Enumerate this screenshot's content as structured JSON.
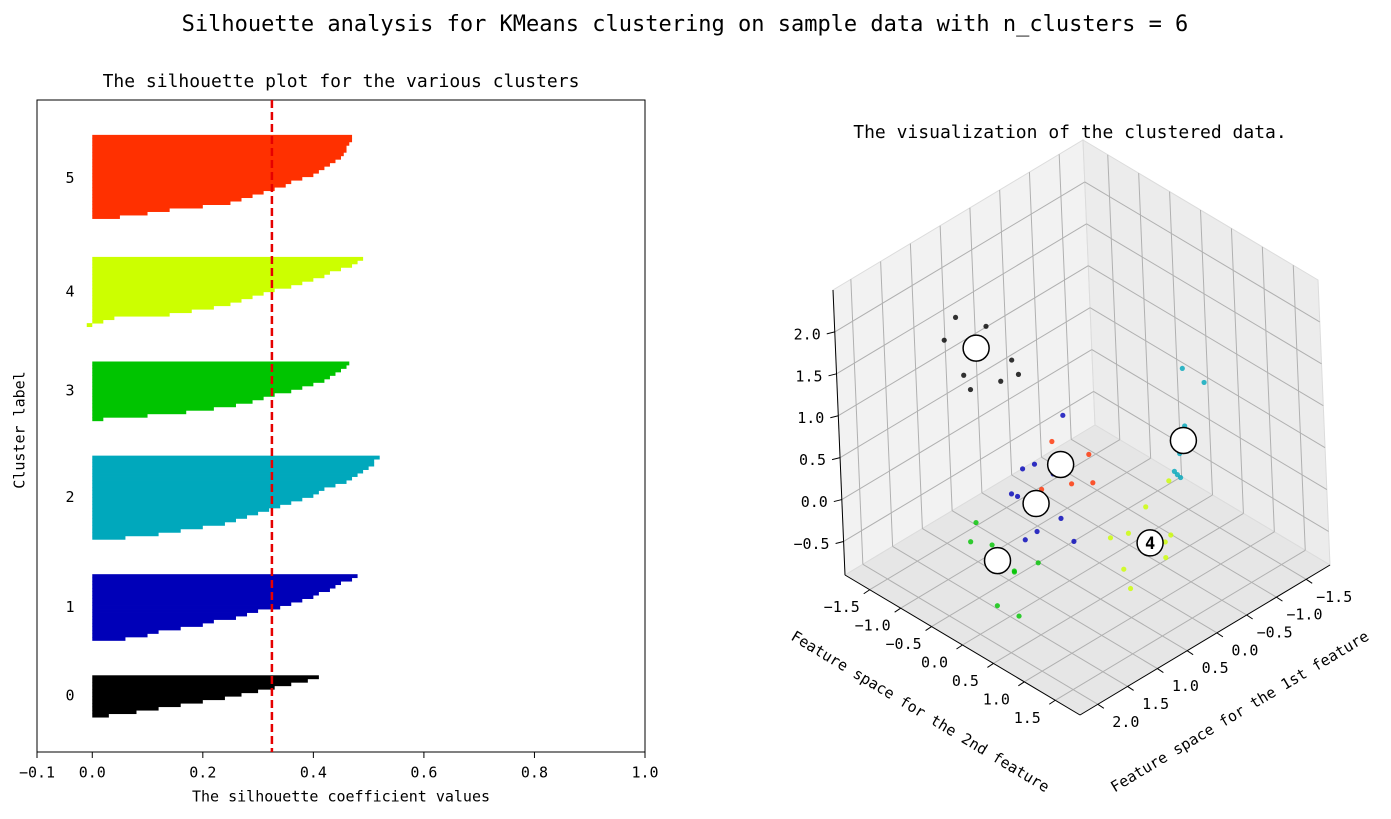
{
  "title": "Silhouette analysis for KMeans clustering on sample data with n_clusters = 6",
  "chart_data": [
    {
      "type": "silhouette",
      "title": "The silhouette plot for the various clusters",
      "xlabel": "The silhouette coefficient values",
      "ylabel": "Cluster label",
      "xlim": [
        -0.1,
        1.0
      ],
      "xticks": [
        {
          "value": -0.1,
          "label": "−0.1"
        },
        {
          "value": 0,
          "label": "0.0"
        },
        0.2,
        0.4,
        0.6,
        0.8,
        {
          "value": 1,
          "label": "1.0"
        }
      ],
      "average_line": 0.325,
      "average_line_color": "#e60000",
      "series": [
        {
          "name": "0",
          "color": "#000000",
          "values": [
            0.03,
            0.08,
            0.12,
            0.16,
            0.2,
            0.24,
            0.27,
            0.3,
            0.33,
            0.36,
            0.39,
            0.41
          ]
        },
        {
          "name": "1",
          "color": "#0000b8",
          "values": [
            0.06,
            0.1,
            0.12,
            0.16,
            0.2,
            0.22,
            0.26,
            0.28,
            0.3,
            0.34,
            0.36,
            0.38,
            0.4,
            0.41,
            0.43,
            0.44,
            0.45,
            0.47,
            0.48
          ]
        },
        {
          "name": "2",
          "color": "#00a8bc",
          "values": [
            0.06,
            0.12,
            0.16,
            0.2,
            0.24,
            0.26,
            0.28,
            0.3,
            0.32,
            0.34,
            0.36,
            0.38,
            0.4,
            0.41,
            0.42,
            0.44,
            0.46,
            0.47,
            0.48,
            0.49,
            0.5,
            0.51,
            0.51,
            0.52
          ]
        },
        {
          "name": "3",
          "color": "#00c400",
          "values": [
            0.02,
            0.1,
            0.17,
            0.22,
            0.26,
            0.29,
            0.31,
            0.33,
            0.36,
            0.38,
            0.4,
            0.42,
            0.43,
            0.44,
            0.45,
            0.46,
            0.465
          ]
        },
        {
          "name": "4",
          "color": "#ccff00",
          "values": [
            -0.01,
            0.02,
            0.04,
            0.14,
            0.18,
            0.22,
            0.25,
            0.27,
            0.29,
            0.31,
            0.33,
            0.36,
            0.38,
            0.4,
            0.42,
            0.43,
            0.45,
            0.47,
            0.48,
            0.49
          ]
        },
        {
          "name": "5",
          "color": "#ff3000",
          "values": [
            0.0,
            0.05,
            0.1,
            0.14,
            0.2,
            0.25,
            0.27,
            0.29,
            0.31,
            0.33,
            0.35,
            0.36,
            0.38,
            0.4,
            0.41,
            0.42,
            0.43,
            0.44,
            0.45,
            0.455,
            0.46,
            0.46,
            0.465,
            0.47,
            0.47
          ]
        }
      ]
    },
    {
      "type": "scatter3d",
      "title": "The visualization of the clustered data.",
      "xlabel": "Feature space for the 1st feature",
      "ylabel": "Feature space for the 2nd feature",
      "xlim": [
        -1.9,
        2.3
      ],
      "ylim": [
        -1.9,
        1.9
      ],
      "zlim": [
        -0.9,
        2.5
      ],
      "xticks": [
        {
          "value": -1.5,
          "label": "−1.5"
        },
        {
          "value": -1,
          "label": "−1.0"
        },
        {
          "value": -0.5,
          "label": "−0.5"
        },
        {
          "value": 0,
          "label": "0.0"
        },
        0.5,
        {
          "value": 1,
          "label": "1.0"
        },
        1.5,
        {
          "value": 2,
          "label": "2.0"
        }
      ],
      "yticks": [
        {
          "value": -1.5,
          "label": "−1.5"
        },
        {
          "value": -1,
          "label": "−1.0"
        },
        {
          "value": -0.5,
          "label": "−0.5"
        },
        {
          "value": 0,
          "label": "0.0"
        },
        0.5,
        {
          "value": 1,
          "label": "1.0"
        },
        1.5
      ],
      "zticks": [
        {
          "value": -0.5,
          "label": "−0.5"
        },
        {
          "value": 0,
          "label": "0.0"
        },
        0.5,
        {
          "value": 1,
          "label": "1.0"
        },
        1.5,
        {
          "value": 2,
          "label": "2.0"
        }
      ],
      "series": [
        {
          "color": "#000000",
          "x": [
            1.5,
            1.3,
            1.0,
            1.6,
            1.2,
            0.9,
            1.4,
            1.1,
            0.8
          ],
          "y": [
            -0.9,
            -0.4,
            -0.8,
            -0.5,
            -1.0,
            -0.3,
            -0.6,
            -0.2,
            -0.7
          ],
          "z": [
            2.0,
            2.3,
            1.7,
            1.8,
            2.1,
            1.6,
            1.5,
            1.9,
            1.3
          ]
        },
        {
          "color": "#0000b8",
          "x": [
            0.9,
            0.5,
            0.7,
            1.0,
            0.4,
            0.6,
            0.8,
            0.3,
            1.1,
            0.65
          ],
          "y": [
            -0.4,
            -0.1,
            -0.5,
            0.0,
            -0.3,
            0.2,
            -0.6,
            -0.2,
            -0.1,
            -0.35
          ],
          "z": [
            0.1,
            -0.2,
            0.3,
            -0.1,
            0.2,
            -0.3,
            0.0,
            0.9,
            -0.2,
            0.4
          ]
        },
        {
          "color": "#00a8bc",
          "x": [
            -0.8,
            -0.6,
            -0.9,
            -0.5,
            -0.7,
            -1.0,
            -0.65,
            -0.75,
            -0.4
          ],
          "y": [
            0.7,
            0.8,
            0.6,
            0.9,
            0.75,
            0.85,
            0.65,
            0.7,
            0.95
          ],
          "z": [
            0.7,
            0.5,
            1.3,
            0.3,
            0.6,
            1.2,
            0.2,
            0.65,
            0.4
          ]
        },
        {
          "color": "#00c400",
          "x": [
            1.6,
            1.4,
            1.7,
            1.3,
            1.8,
            1.5,
            1.2,
            1.65,
            1.45
          ],
          "y": [
            -0.2,
            0.0,
            -0.4,
            -0.1,
            0.1,
            -0.5,
            0.2,
            0.3,
            -0.3
          ],
          "z": [
            -0.2,
            -0.4,
            -0.1,
            -0.5,
            -0.6,
            0.0,
            -0.3,
            -0.7,
            -0.2
          ]
        },
        {
          "color": "#ccff00",
          "x": [
            -0.5,
            -0.2,
            -0.4,
            0.0,
            -0.6,
            -0.3,
            0.1,
            -0.1,
            -0.7
          ],
          "y": [
            0.6,
            0.3,
            0.7,
            0.4,
            0.2,
            0.9,
            0.6,
            0.1,
            0.5
          ],
          "z": [
            -0.6,
            -0.5,
            -0.7,
            -0.8,
            -0.4,
            -0.3,
            -0.9,
            -0.6,
            0.0
          ]
        },
        {
          "color": "#ff3000",
          "x": [
            0.2,
            0.4,
            0.1,
            0.5,
            0.3,
            0.0,
            0.6,
            0.25
          ],
          "y": [
            -0.3,
            -0.2,
            -0.5,
            0.1,
            -0.4,
            -0.1,
            -0.3,
            0.2
          ],
          "z": [
            0.3,
            0.4,
            0.2,
            0.3,
            0.5,
            0.35,
            0.1,
            0.25
          ]
        }
      ],
      "centers": {
        "x": [
          1.23,
          0.73,
          -0.7,
          1.51,
          -0.36,
          0.32
        ],
        "y": [
          -0.65,
          -0.27,
          0.77,
          -0.16,
          0.49,
          -0.25
        ],
        "z": [
          1.9,
          0.0,
          0.6,
          -0.3,
          -0.6,
          0.3
        ],
        "labels": [
          null,
          null,
          null,
          null,
          "4",
          null
        ]
      }
    }
  ]
}
